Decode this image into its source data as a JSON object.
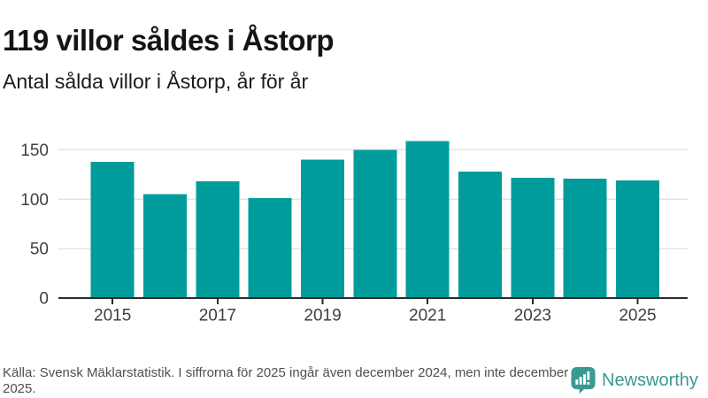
{
  "header": {
    "title": "119 villor såldes i Åstorp",
    "subtitle": "Antal sålda villor i Åstorp, år för år"
  },
  "chart_data": {
    "type": "bar",
    "title": "119 villor såldes i Åstorp",
    "subtitle": "Antal sålda villor i Åstorp, år för år",
    "categories": [
      "2015",
      "2016",
      "2017",
      "2018",
      "2019",
      "2020",
      "2021",
      "2022",
      "2023",
      "2024",
      "2025"
    ],
    "values": [
      138,
      105,
      118,
      101,
      140,
      150,
      159,
      128,
      122,
      121,
      119
    ],
    "xlabel": "",
    "ylabel": "",
    "ylim": [
      0,
      172
    ],
    "y_ticks": [
      0,
      50,
      100,
      150
    ],
    "x_tick_labels": [
      "2015",
      "2017",
      "2019",
      "2021",
      "2023",
      "2025"
    ],
    "grid": true,
    "legend_position": "none",
    "bar_color": "#009c9b"
  },
  "footer": {
    "source_text": "Källa: Svensk Mäklarstatistik. I siffrorna för 2025 ingår även december 2024, men inte december 2025.",
    "brand": {
      "name": "Newsworthy",
      "icon": "newsworthy-speech-bubble-barchart-icon",
      "color": "#3a9a93"
    }
  },
  "colors": {
    "bar": "#009c9b",
    "grid_line": "#e3e3e3",
    "axis_line": "#2b2b2b",
    "tick_label": "#404040",
    "title_text": "#141414",
    "footer_text": "#4f4f4f",
    "brand_teal": "#3a9a93"
  }
}
